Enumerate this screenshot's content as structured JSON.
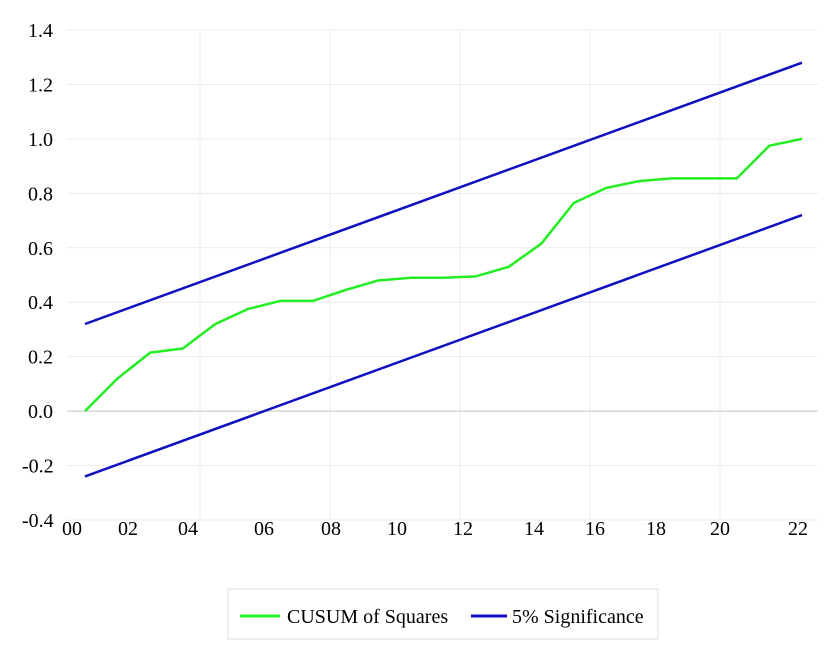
{
  "chart_data": {
    "type": "line",
    "title": "",
    "xlabel": "",
    "ylabel": "",
    "xlim": [
      2000,
      2022
    ],
    "ylim": [
      -0.4,
      1.4
    ],
    "x_ticks": [
      "00",
      "02",
      "04",
      "06",
      "08",
      "10",
      "12",
      "14",
      "16",
      "18",
      "20",
      "22"
    ],
    "y_ticks": [
      "1.4",
      "1.2",
      "1.0",
      "0.8",
      "0.6",
      "0.4",
      "0.2",
      "0.0",
      "-0.2",
      "-0.4"
    ],
    "grid": true,
    "legend_position": "bottom",
    "series": [
      {
        "name": "CUSUM of Squares",
        "color": "#22ee22",
        "x": [
          2000,
          2001,
          2002,
          2003,
          2004,
          2005,
          2006,
          2007,
          2008,
          2009,
          2010,
          2011,
          2012,
          2013,
          2014,
          2015,
          2016,
          2017,
          2018,
          2019,
          2020,
          2021,
          2022
        ],
        "y": [
          0.0,
          0.12,
          0.215,
          0.23,
          0.32,
          0.375,
          0.405,
          0.405,
          0.445,
          0.48,
          0.49,
          0.49,
          0.495,
          0.53,
          0.615,
          0.765,
          0.82,
          0.845,
          0.855,
          0.855,
          0.855,
          0.975,
          1.0
        ]
      },
      {
        "name": "5% Significance",
        "color": "#1010c0",
        "x": [
          2000,
          2022
        ],
        "y": [
          0.32,
          1.28
        ]
      },
      {
        "name": "5% Significance",
        "color": "#1010c0",
        "x": [
          2000,
          2022
        ],
        "y": [
          -0.24,
          0.72
        ]
      }
    ],
    "legend": [
      {
        "label": "CUSUM of Squares",
        "color": "#22ee22"
      },
      {
        "label": "5% Significance",
        "color": "#1010c0"
      }
    ]
  }
}
